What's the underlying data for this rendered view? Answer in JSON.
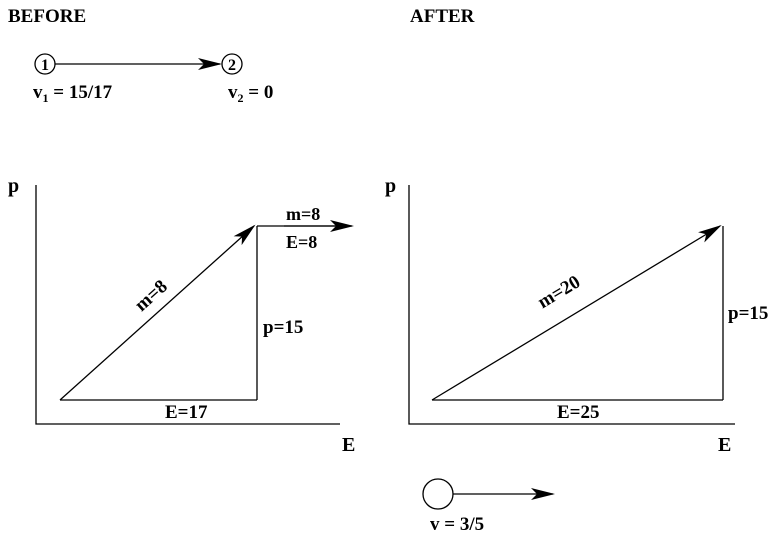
{
  "before": {
    "heading": "BEFORE",
    "particle1_label": "1",
    "particle2_label": "2",
    "v1": {
      "symbol": "v",
      "sub": "1",
      "value": " = 15/17"
    },
    "v2": {
      "symbol": "v",
      "sub": "2",
      "value": " = 0"
    }
  },
  "after": {
    "heading": "AFTER",
    "velocity": "v = 3/5"
  },
  "left_plot": {
    "y_axis_label": "p",
    "x_axis_label": "E",
    "hyp_label": "m=8",
    "vert_label": "p=15",
    "base_label": "E=17",
    "out_mass_label": "m=8",
    "out_energy_label": "E=8"
  },
  "right_plot": {
    "y_axis_label": "p",
    "x_axis_label": "E",
    "hyp_label": "m=20",
    "vert_label": "p=15",
    "base_label": "E=25"
  }
}
